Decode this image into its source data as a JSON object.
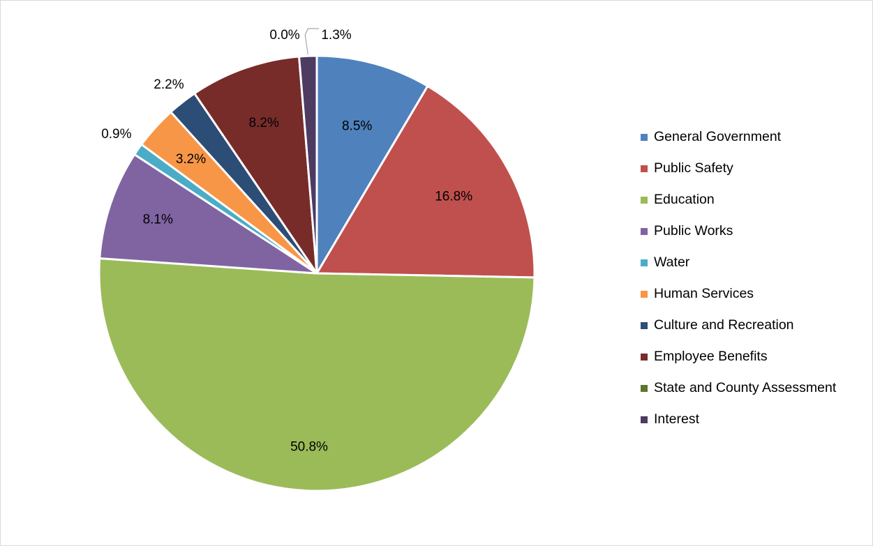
{
  "chart_data": {
    "type": "pie",
    "title": "",
    "legend_position": "right",
    "start_angle_deg": 0,
    "direction": "clockwise",
    "slices": [
      {
        "name": "General Government",
        "value": 8.5,
        "label": "8.5%",
        "color": "#4F81BD"
      },
      {
        "name": "Public Safety",
        "value": 16.8,
        "label": "16.8%",
        "color": "#C0504D"
      },
      {
        "name": "Education",
        "value": 50.8,
        "label": "50.8%",
        "color": "#9BBB59"
      },
      {
        "name": "Public Works",
        "value": 8.1,
        "label": "8.1%",
        "color": "#8064A2"
      },
      {
        "name": "Water",
        "value": 0.9,
        "label": "0.9%",
        "color": "#4BACC6"
      },
      {
        "name": "Human Services",
        "value": 3.2,
        "label": "3.2%",
        "color": "#F79646"
      },
      {
        "name": "Culture and Recreation",
        "value": 2.2,
        "label": "2.2%",
        "color": "#2C4D75"
      },
      {
        "name": "Employee Benefits",
        "value": 8.2,
        "label": "8.2%",
        "color": "#772C2A"
      },
      {
        "name": "State and County Assessment",
        "value": 0.0,
        "label": "0.0%",
        "color": "#5F7530"
      },
      {
        "name": "Interest",
        "value": 1.3,
        "label": "1.3%",
        "color": "#4D3B62"
      }
    ]
  }
}
